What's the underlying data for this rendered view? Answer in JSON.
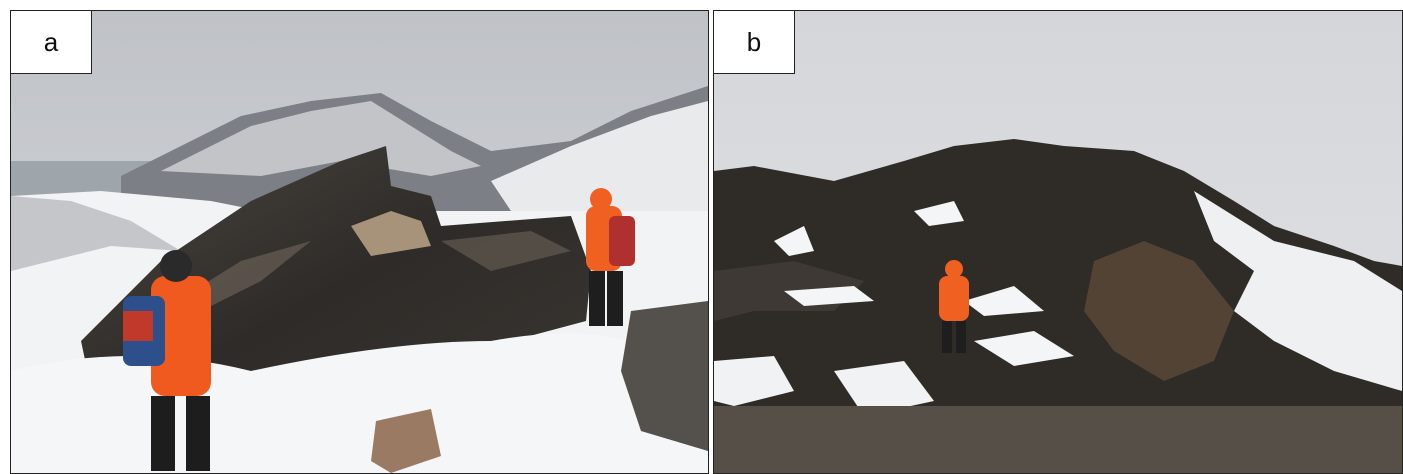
{
  "figure": {
    "panels": [
      {
        "id": "a",
        "label": "a",
        "scene": "hikers-examining-rock-outcrop-with-mountain-backdrop"
      },
      {
        "id": "b",
        "label": "b",
        "scene": "person-in-front-of-rocky-ridge-in-snow"
      }
    ]
  }
}
